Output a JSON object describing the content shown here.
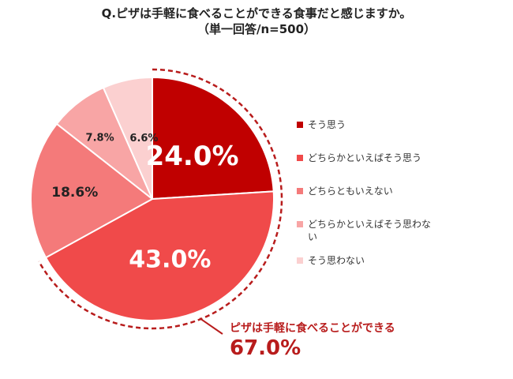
{
  "title": {
    "line1": "Q.ピザは手軽に食べることができる食事だと感じますか。",
    "line2": "（単一回答/n=500）"
  },
  "chart_data": {
    "type": "pie",
    "categories": [
      "そう思う",
      "どちらかといえばそう思う",
      "どちらともいえない",
      "どちらかといえばそう思わない",
      "そう思わない"
    ],
    "values": [
      24.0,
      43.0,
      18.6,
      7.8,
      6.6
    ],
    "value_labels": [
      "24.0%",
      "43.0%",
      "18.6%",
      "7.8%",
      "6.6%"
    ],
    "colors": [
      "#c00000",
      "#f04a4a",
      "#f47a7a",
      "#f8a5a5",
      "#fbd0d0"
    ],
    "legend_placement": "right",
    "annotation": {
      "text": "ピザは手軽に食べることができる",
      "value": "67.0%"
    }
  }
}
